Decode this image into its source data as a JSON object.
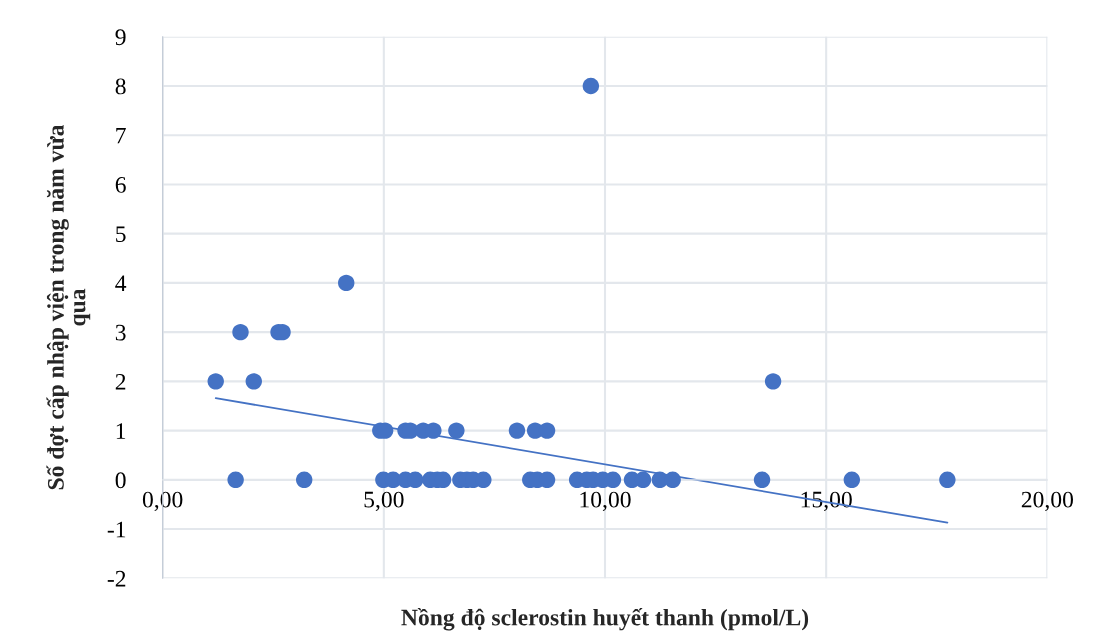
{
  "chart_data": {
    "type": "scatter",
    "xlabel": "Nồng độ sclerostin huyết thanh (pmol/L)",
    "ylabel": "Số đợt cấp nhập viện trong năm vừa\nqua",
    "xlim": [
      0,
      20
    ],
    "ylim": [
      -2,
      9
    ],
    "xticks": [
      {
        "value": 0,
        "label": "0,00"
      },
      {
        "value": 5,
        "label": "5,00"
      },
      {
        "value": 10,
        "label": "10,00"
      },
      {
        "value": 15,
        "label": "15,00"
      },
      {
        "value": 20,
        "label": "20,00"
      }
    ],
    "yticks": [
      -2,
      -1,
      0,
      1,
      2,
      3,
      4,
      5,
      6,
      7,
      8,
      9
    ],
    "grid": true,
    "series": [
      {
        "color": "#4472c4",
        "marker": "circle",
        "x": [
          1.2,
          2.06,
          13.8,
          1.76,
          2.62,
          2.71,
          4.15,
          9.68,
          4.92,
          5.03,
          5.49,
          5.6,
          5.89,
          6.12,
          6.64,
          8.01,
          8.42,
          8.69,
          1.65,
          3.2,
          4.99,
          5.21,
          5.49,
          5.71,
          6.05,
          6.21,
          6.34,
          6.73,
          6.88,
          7.02,
          7.25,
          8.31,
          8.47,
          8.69,
          9.37,
          9.59,
          9.73,
          9.95,
          10.18,
          10.61,
          10.86,
          11.24,
          11.53,
          13.55,
          15.58,
          17.74
        ],
        "values": [
          2,
          2,
          2,
          3,
          3,
          3,
          4,
          8,
          1,
          1,
          1,
          1,
          1,
          1,
          1,
          1,
          1,
          1,
          0,
          0,
          0,
          0,
          0,
          0,
          0,
          0,
          0,
          0,
          0,
          0,
          0,
          0,
          0,
          0,
          0,
          0,
          0,
          0,
          0,
          0,
          0,
          0,
          0,
          0,
          0,
          0
        ]
      },
      {
        "type": "line",
        "color": "#4472c4",
        "x": [
          1.2,
          17.74
        ],
        "values": [
          1.66,
          -0.87
        ]
      }
    ]
  }
}
